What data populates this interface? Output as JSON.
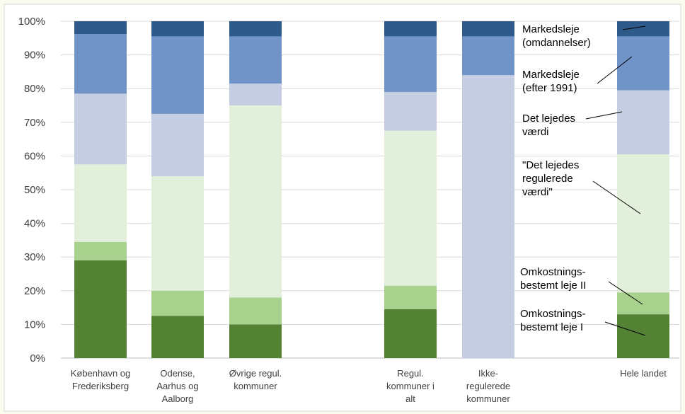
{
  "chart_data": {
    "type": "bar",
    "stacked": true,
    "y_unit": "%",
    "ylim": [
      0,
      100
    ],
    "yticks": [
      0,
      10,
      20,
      30,
      40,
      50,
      60,
      70,
      80,
      90,
      100
    ],
    "ytick_labels": [
      "0%",
      "10%",
      "20%",
      "30%",
      "40%",
      "50%",
      "60%",
      "70%",
      "80%",
      "90%",
      "100%"
    ],
    "grid": true,
    "legend": "inline-annotations-right",
    "categories": [
      [
        "København og",
        "Frederiksberg"
      ],
      [
        "Odense,",
        "Aarhus og",
        "Aalborg"
      ],
      [
        "Øvrige regul.",
        "kommuner"
      ],
      [
        "Regul.",
        "kommuner i",
        "alt"
      ],
      [
        "Ikke-",
        "regulerede",
        "kommuner"
      ],
      [
        "Hele landet"
      ]
    ],
    "series": [
      {
        "name": "Omkostningsbestemt leje I",
        "label_lines": [
          "Omkostnings-",
          "bestemt leje I"
        ],
        "color": "#548235",
        "values": [
          29.0,
          12.5,
          10.0,
          14.5,
          0,
          13.0
        ]
      },
      {
        "name": "Omkostningsbestemt leje II",
        "label_lines": [
          "Omkostnings-",
          "bestemt leje II"
        ],
        "color": "#a9d18e",
        "values": [
          5.5,
          7.5,
          8.0,
          7.0,
          0,
          6.5
        ]
      },
      {
        "name": "\"Det lejedes regulerede værdi\"",
        "label_lines": [
          "\"Det lejedes",
          "regulerede",
          "værdi\""
        ],
        "color": "#e2efda",
        "values": [
          23.0,
          34.0,
          57.0,
          46.0,
          0,
          41.0
        ]
      },
      {
        "name": "Det lejedes værdi",
        "label_lines": [
          "Det lejedes",
          "værdi"
        ],
        "color": "#c5cde3",
        "values": [
          21.0,
          18.5,
          6.5,
          11.5,
          84.0,
          19.0
        ]
      },
      {
        "name": "Markedsleje (efter 1991)",
        "label_lines": [
          "Markedsleje",
          "(efter 1991)"
        ],
        "color": "#7094c8",
        "values": [
          17.7,
          23.0,
          14.0,
          16.5,
          11.5,
          16.0
        ]
      },
      {
        "name": "Markedsleje (omdannelser)",
        "label_lines": [
          "Markedsleje",
          "(omdannelser)"
        ],
        "color": "#2e5a8a",
        "values": [
          3.8,
          4.5,
          4.5,
          4.5,
          4.5,
          4.5
        ]
      }
    ]
  }
}
